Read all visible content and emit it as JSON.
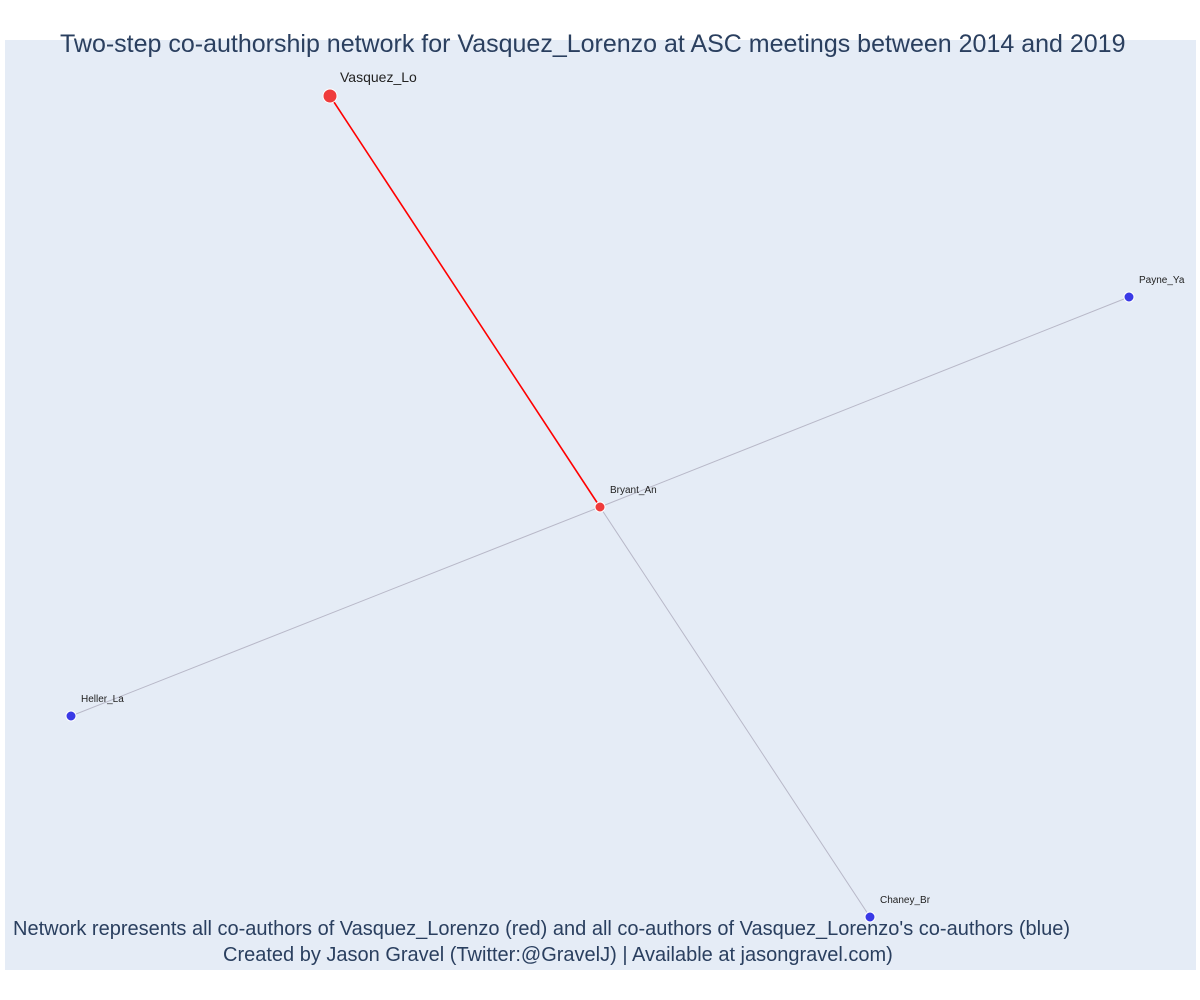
{
  "title": "Two-step co-authorship network for Vasquez_Lorenzo at ASC meetings between 2014 and 2019",
  "caption": "Network represents all co-authors of Vasquez_Lorenzo (red) and all co-authors of Vasquez_Lorenzo's co-authors (blue)",
  "credit": "Created by Jason Gravel (Twitter:@GravelJ) | Available at jasongravel.com)",
  "colors": {
    "background": "#e5ecf6",
    "focal_node": "#ef3b3b",
    "first_step_node": "#ef3b3b",
    "second_step_node": "#3a3ae6",
    "focal_edge": "#ff0000",
    "other_edge": "#b8b8c8",
    "text": "#2a3f5f"
  },
  "network": {
    "nodes": [
      {
        "id": "Vasquez_Lo",
        "label": "Vasquez_Lo",
        "group": "focal"
      },
      {
        "id": "Bryant_An",
        "label": "Bryant_An",
        "group": "coauthor"
      },
      {
        "id": "Payne_Ya",
        "label": "Payne_Ya",
        "group": "second_step"
      },
      {
        "id": "Heller_La",
        "label": "Heller_La",
        "group": "second_step"
      },
      {
        "id": "Chaney_Br",
        "label": "Chaney_Br",
        "group": "second_step"
      }
    ],
    "edges": [
      {
        "source": "Vasquez_Lo",
        "target": "Bryant_An",
        "type": "focal"
      },
      {
        "source": "Bryant_An",
        "target": "Payne_Ya",
        "type": "other"
      },
      {
        "source": "Bryant_An",
        "target": "Heller_La",
        "type": "other"
      },
      {
        "source": "Bryant_An",
        "target": "Chaney_Br",
        "type": "other"
      }
    ]
  }
}
